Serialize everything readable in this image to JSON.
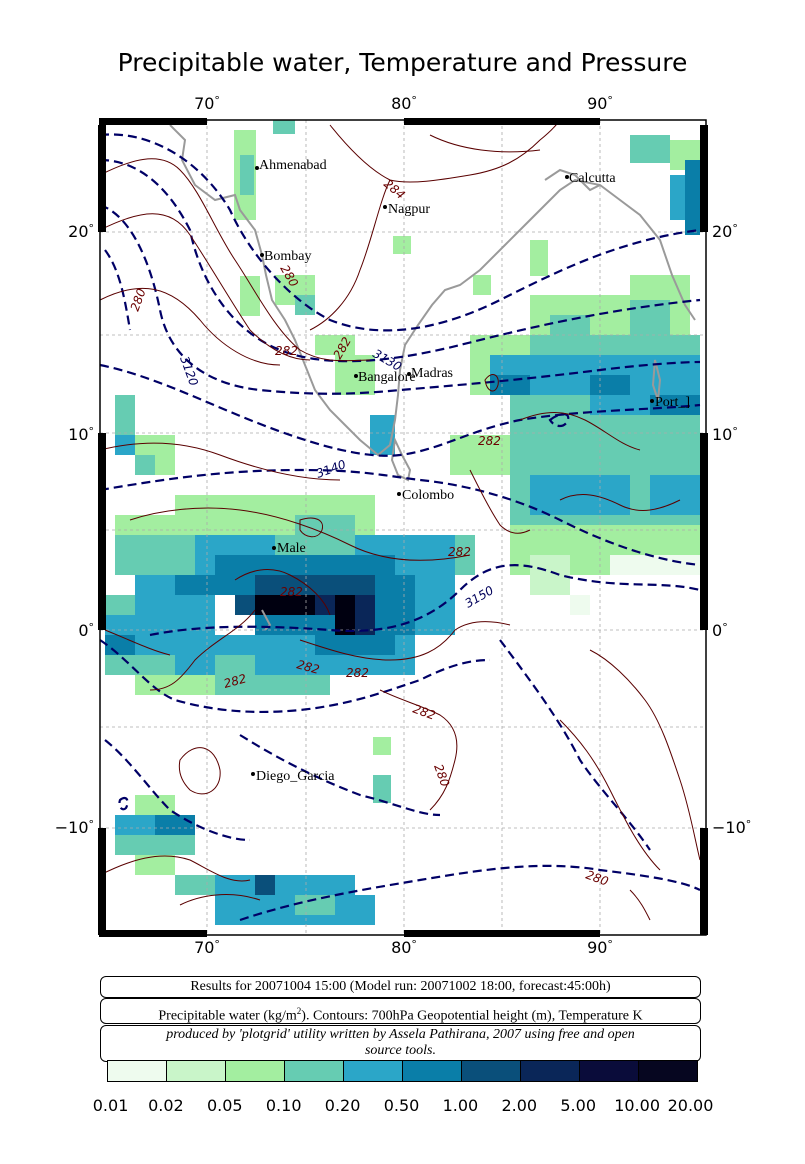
{
  "title": "Precipitable water, Temperature and Pressure",
  "axes": {
    "lon_ticks": [
      "70",
      "80",
      "90"
    ],
    "lat_ticks": [
      "20",
      "10",
      "0",
      "−10"
    ],
    "degree_symbol": "°"
  },
  "cities": [
    {
      "name": "Ahmenabad",
      "lon": 72.6,
      "lat": 23.0
    },
    {
      "name": "Nagpur",
      "lon": 79.1,
      "lat": 21.1
    },
    {
      "name": "Calcutta",
      "lon": 88.4,
      "lat": 22.6
    },
    {
      "name": "Bombay",
      "lon": 72.8,
      "lat": 19.0
    },
    {
      "name": "Bangalore",
      "lon": 77.6,
      "lat": 13.0
    },
    {
      "name": "Madras",
      "lon": 80.3,
      "lat": 13.1
    },
    {
      "name": "Port_Blair",
      "display": "Port_]",
      "lon": 92.7,
      "lat": 11.6
    },
    {
      "name": "Colombo",
      "lon": 79.9,
      "lat": 6.9
    },
    {
      "name": "Male",
      "display": "Male",
      "lon": 73.5,
      "lat": 4.2
    },
    {
      "name": "Diego_Garcia",
      "lon": 72.4,
      "lat": -7.3
    }
  ],
  "contour_labels": {
    "height": [
      "3130",
      "3120",
      "3140",
      "3150"
    ],
    "temperature": [
      "284",
      "280",
      "280",
      "282",
      "282",
      "282",
      "282",
      "282",
      "282",
      "282",
      "282",
      "282",
      "280",
      "280"
    ]
  },
  "info": {
    "results": "Results for 20071004 15:00 (Model run: 20071002 18:00, forecast:45:00h)",
    "description_pre": "Precipitable water (kg/m",
    "description_sup": "2",
    "description_post": ").  Contours: 700hPa Geopotential height (m), Temperature K",
    "credit_line1": "produced by 'plotgrid' utility written by Assela Pathirana, 2007 using free and open",
    "credit_line2": "source tools."
  },
  "legend": {
    "labels": [
      "0.01",
      "0.02",
      "0.05",
      "0.10",
      "0.20",
      "0.50",
      "1.00",
      "2.00",
      "5.00",
      "10.00",
      "20.00"
    ],
    "colors": [
      "#eefbee",
      "#c9f5c9",
      "#a3eea0",
      "#66ccb2",
      "#2ba6c8",
      "#0a7ea8",
      "#0a4f7a",
      "#0a2658",
      "#0a0c3a",
      "#060620",
      "#000010"
    ]
  },
  "colors": {
    "height_contour": "#000066",
    "temperature_contour": "#5a0000",
    "coastline": "#9a9a9a",
    "gridline": "#aaaaaa"
  },
  "map_extent": {
    "lon_min": 65,
    "lon_max": 95,
    "lat_min": -15.5,
    "lat_max": 25.5
  }
}
